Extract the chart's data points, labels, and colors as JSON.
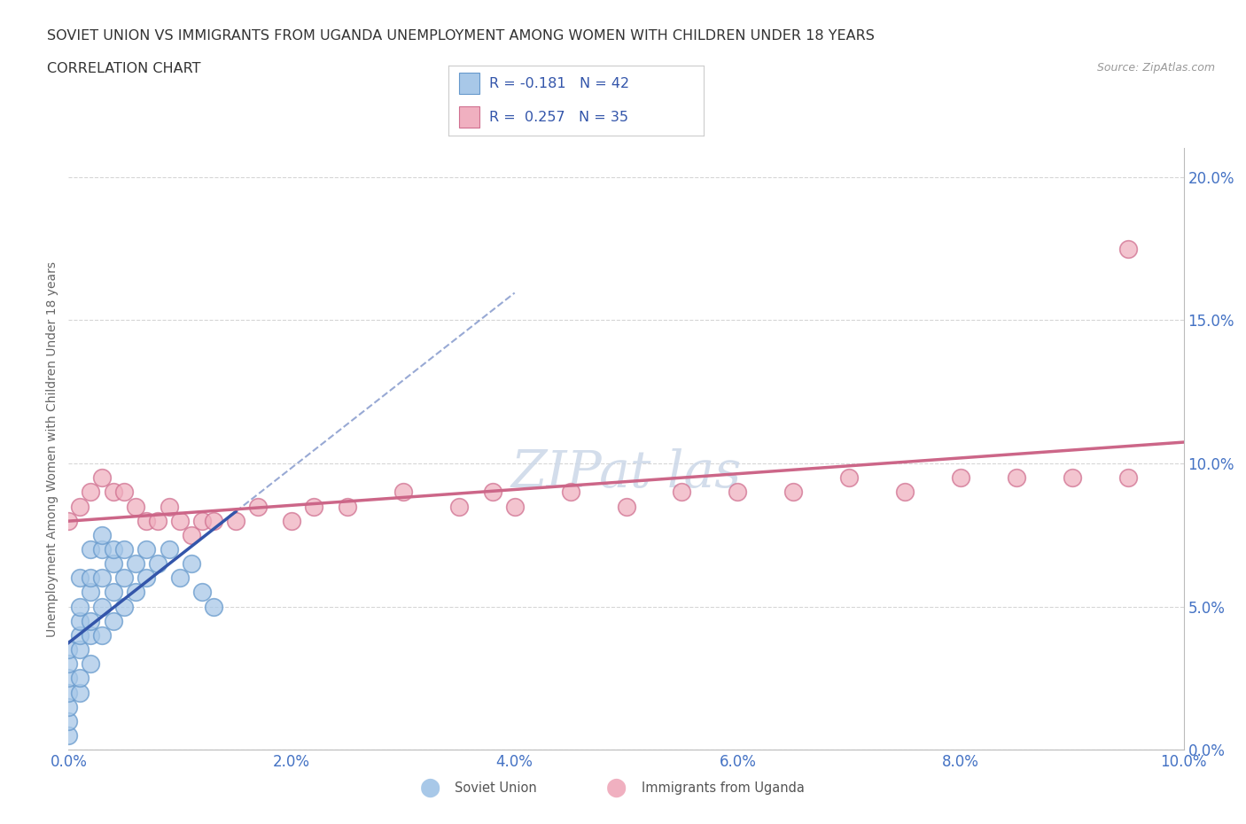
{
  "title_line1": "SOVIET UNION VS IMMIGRANTS FROM UGANDA UNEMPLOYMENT AMONG WOMEN WITH CHILDREN UNDER 18 YEARS",
  "title_line2": "CORRELATION CHART",
  "source": "Source: ZipAtlas.com",
  "ylabel": "Unemployment Among Women with Children Under 18 years",
  "xlim": [
    0.0,
    0.1
  ],
  "ylim": [
    0.0,
    0.21
  ],
  "yticks": [
    0.0,
    0.05,
    0.1,
    0.15,
    0.2
  ],
  "ytick_labels": [
    "0.0%",
    "5.0%",
    "10.0%",
    "15.0%",
    "20.0%"
  ],
  "xticks": [
    0.0,
    0.02,
    0.04,
    0.06,
    0.08,
    0.1
  ],
  "xtick_labels": [
    "0.0%",
    "2.0%",
    "4.0%",
    "6.0%",
    "8.0%",
    "10.0%"
  ],
  "soviet_color": "#a8c8e8",
  "soviet_edge_color": "#6699cc",
  "uganda_color": "#f0b0c0",
  "uganda_edge_color": "#d07090",
  "line_color_soviet": "#3355aa",
  "line_color_uganda": "#cc6688",
  "legend_text_color": "#3355aa",
  "axis_tick_color": "#4472c4",
  "grid_color": "#cccccc",
  "watermark_color": "#ccd8e8",
  "soviet_x": [
    0.0,
    0.0,
    0.0,
    0.0,
    0.0,
    0.0,
    0.0,
    0.001,
    0.001,
    0.001,
    0.001,
    0.001,
    0.001,
    0.001,
    0.002,
    0.002,
    0.002,
    0.002,
    0.002,
    0.002,
    0.003,
    0.003,
    0.003,
    0.003,
    0.003,
    0.004,
    0.004,
    0.004,
    0.004,
    0.005,
    0.005,
    0.005,
    0.006,
    0.006,
    0.007,
    0.007,
    0.008,
    0.009,
    0.01,
    0.011,
    0.012,
    0.013
  ],
  "soviet_y": [
    0.005,
    0.01,
    0.015,
    0.02,
    0.025,
    0.03,
    0.035,
    0.02,
    0.025,
    0.035,
    0.04,
    0.045,
    0.05,
    0.06,
    0.03,
    0.04,
    0.045,
    0.055,
    0.06,
    0.07,
    0.04,
    0.05,
    0.06,
    0.07,
    0.075,
    0.045,
    0.055,
    0.065,
    0.07,
    0.05,
    0.06,
    0.07,
    0.055,
    0.065,
    0.06,
    0.07,
    0.065,
    0.07,
    0.06,
    0.065,
    0.055,
    0.05
  ],
  "uganda_x": [
    0.0,
    0.001,
    0.002,
    0.003,
    0.004,
    0.005,
    0.006,
    0.007,
    0.008,
    0.009,
    0.01,
    0.011,
    0.012,
    0.013,
    0.015,
    0.017,
    0.02,
    0.022,
    0.025,
    0.03,
    0.035,
    0.038,
    0.04,
    0.045,
    0.05,
    0.055,
    0.06,
    0.065,
    0.07,
    0.075,
    0.08,
    0.085,
    0.09,
    0.095,
    0.095
  ],
  "uganda_y": [
    0.08,
    0.085,
    0.09,
    0.095,
    0.09,
    0.09,
    0.085,
    0.08,
    0.08,
    0.085,
    0.08,
    0.075,
    0.08,
    0.08,
    0.08,
    0.085,
    0.08,
    0.085,
    0.085,
    0.09,
    0.085,
    0.09,
    0.085,
    0.09,
    0.085,
    0.09,
    0.09,
    0.09,
    0.095,
    0.09,
    0.095,
    0.095,
    0.095,
    0.095,
    0.175
  ]
}
